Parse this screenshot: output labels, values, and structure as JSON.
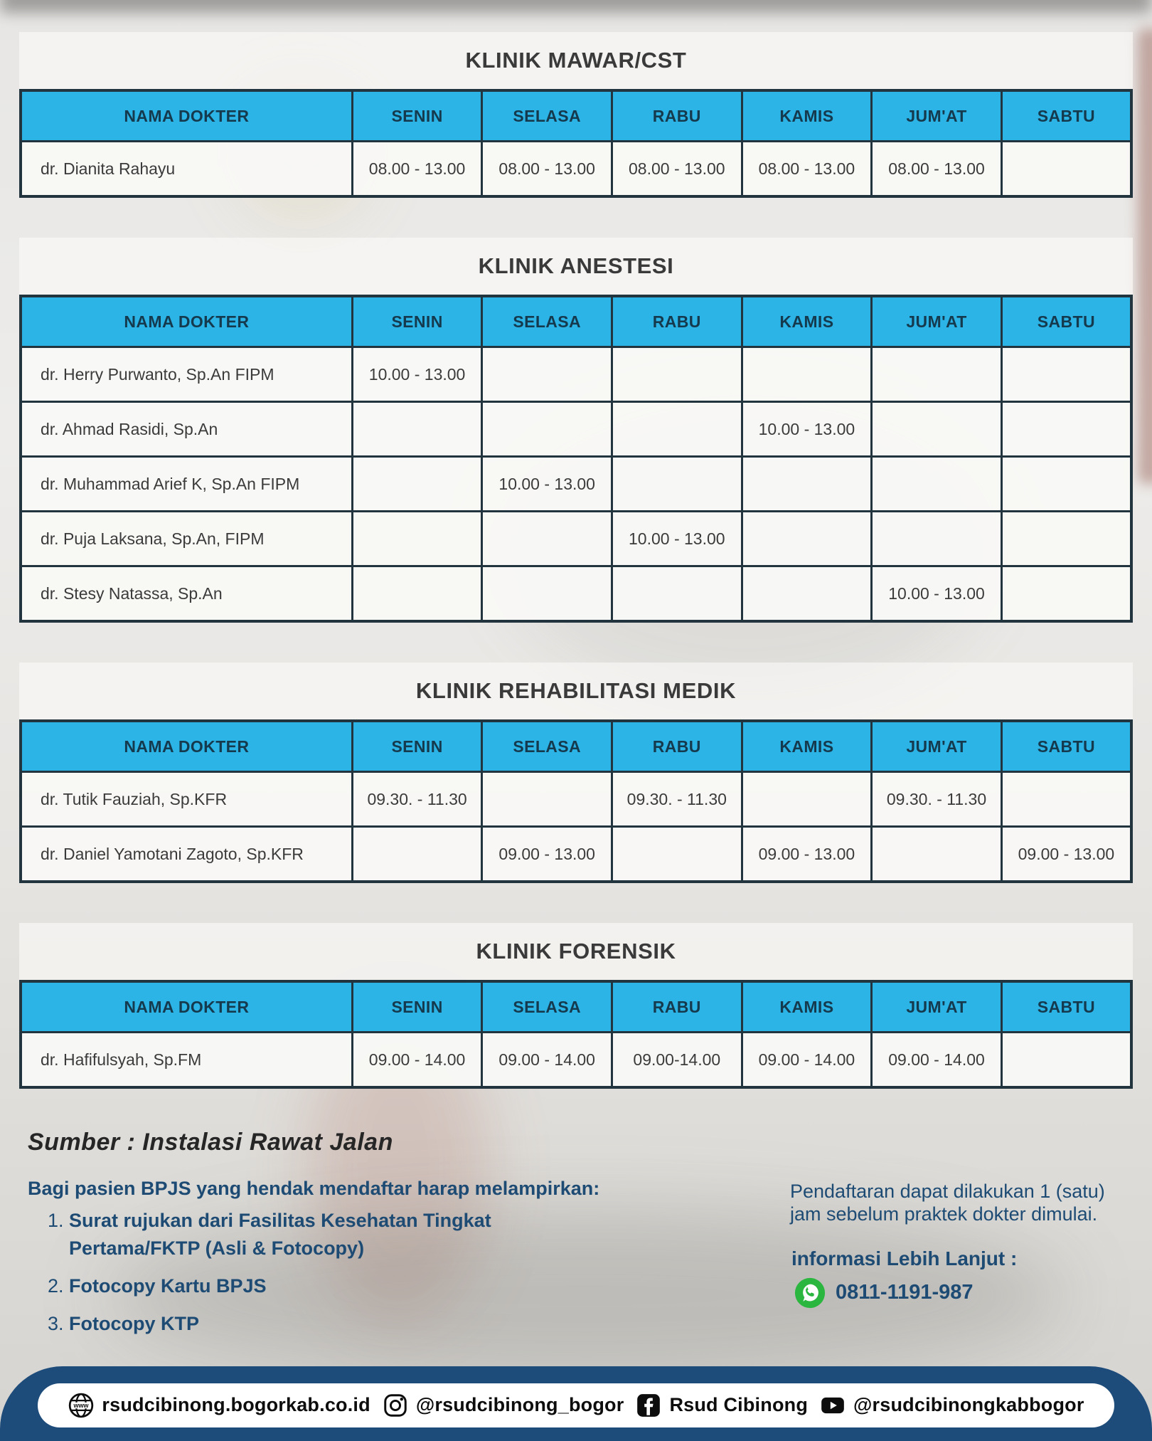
{
  "columns": [
    "NAMA DOKTER",
    "SENIN",
    "SELASA",
    "RABU",
    "KAMIS",
    "JUM'AT",
    "SABTU"
  ],
  "tables": [
    {
      "title": "KLINIK MAWAR/CST",
      "rows": [
        {
          "name": "dr. Dianita Rahayu",
          "times": [
            "08.00 - 13.00",
            "08.00 - 13.00",
            "08.00 - 13.00",
            "08.00 - 13.00",
            "08.00 - 13.00",
            ""
          ]
        }
      ]
    },
    {
      "title": "KLINIK ANESTESI",
      "rows": [
        {
          "name": "dr. Herry Purwanto, Sp.An FIPM",
          "times": [
            "10.00 - 13.00",
            "",
            "",
            "",
            "",
            ""
          ]
        },
        {
          "name": "dr. Ahmad Rasidi, Sp.An",
          "times": [
            "",
            "",
            "",
            "10.00 - 13.00",
            "",
            ""
          ]
        },
        {
          "name": "dr. Muhammad Arief K, Sp.An FIPM",
          "times": [
            "",
            "10.00 - 13.00",
            "",
            "",
            "",
            ""
          ]
        },
        {
          "name": "dr. Puja Laksana, Sp.An, FIPM",
          "times": [
            "",
            "",
            "10.00 - 13.00",
            "",
            "",
            ""
          ]
        },
        {
          "name": "dr. Stesy Natassa, Sp.An",
          "times": [
            "",
            "",
            "",
            "",
            "10.00 - 13.00",
            ""
          ]
        }
      ]
    },
    {
      "title": "KLINIK REHABILITASI MEDIK",
      "rows": [
        {
          "name": "dr. Tutik Fauziah, Sp.KFR",
          "times": [
            "09.30. - 11.30",
            "",
            "09.30. - 11.30",
            "",
            "09.30. - 11.30",
            ""
          ]
        },
        {
          "name": "dr. Daniel Yamotani Zagoto, Sp.KFR",
          "times": [
            "",
            "09.00 - 13.00",
            "",
            "09.00 - 13.00",
            "",
            "09.00 - 13.00"
          ]
        }
      ]
    },
    {
      "title": "KLINIK FORENSIK",
      "rows": [
        {
          "name": "dr. Hafifulsyah, Sp.FM",
          "times": [
            "09.00 - 14.00",
            "09.00 - 14.00",
            "09.00-14.00",
            "09.00 - 14.00",
            "09.00 - 14.00",
            ""
          ]
        }
      ]
    }
  ],
  "footer": {
    "source": "Sumber : Instalasi Rawat Jalan",
    "bpjs_heading": "Bagi pasien BPJS yang hendak mendaftar harap melampirkan:",
    "bpjs_items": [
      "Surat rujukan dari Fasilitas Kesehatan Tingkat Pertama/FKTP (Asli & Fotocopy)",
      "Fotocopy Kartu BPJS",
      "Fotocopy KTP"
    ],
    "registration_note": "Pendaftaran dapat dilakukan 1 (satu) jam sebelum praktek dokter dimulai.",
    "info_label": "informasi Lebih Lanjut :",
    "whatsapp_icon": "whatsapp-icon",
    "phone": "0811-1191-987"
  },
  "bottom_bar": {
    "website": {
      "icon": "globe-icon",
      "text": "rsudcibinong.bogorkab.co.id"
    },
    "instagram": {
      "icon": "instagram-icon",
      "text": "@rsudcibinong_bogor"
    },
    "facebook": {
      "icon": "facebook-icon",
      "text": "Rsud Cibinong"
    },
    "youtube": {
      "icon": "youtube-icon",
      "text": "@rsudcibinongkabbogor"
    }
  },
  "colors": {
    "header_blue": "#2cb4e7",
    "table_border": "#22343e",
    "footer_text_blue": "#1d4b74",
    "bottom_bar_blue": "#1d4b7a",
    "whatsapp_green": "#2ab63f"
  }
}
